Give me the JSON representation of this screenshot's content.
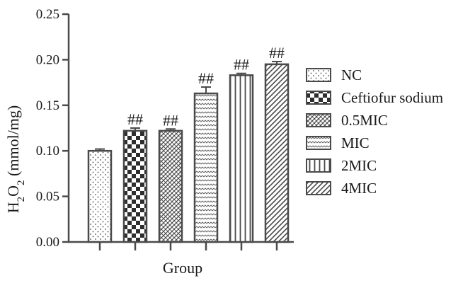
{
  "chart_data": {
    "type": "bar",
    "xlabel": "Group",
    "ylabel_main": "H",
    "ylabel_sub1": "2",
    "ylabel_mid": "O",
    "ylabel_sub2": "2",
    "ylabel_unit": " (mmol/mg)",
    "ylim": [
      0,
      0.25
    ],
    "yticks": [
      "0.00",
      "0.05",
      "0.10",
      "0.15",
      "0.20",
      "0.25"
    ],
    "ytick_values": [
      0,
      0.05,
      0.1,
      0.15,
      0.2,
      0.25
    ],
    "categories": [
      "NC",
      "Ceftiofur sodium",
      "0.5MIC",
      "MIC",
      "2MIC",
      "4MIC"
    ],
    "values": [
      0.1,
      0.122,
      0.122,
      0.163,
      0.183,
      0.195
    ],
    "errors": [
      0.002,
      0.003,
      0.002,
      0.007,
      0.002,
      0.003
    ],
    "annotations": [
      "",
      "##",
      "##",
      "##",
      "##",
      "##"
    ],
    "legend_position": "right",
    "grid": false,
    "bar_fill": "#ffffff",
    "bar_stroke": "#4a4a4a"
  }
}
